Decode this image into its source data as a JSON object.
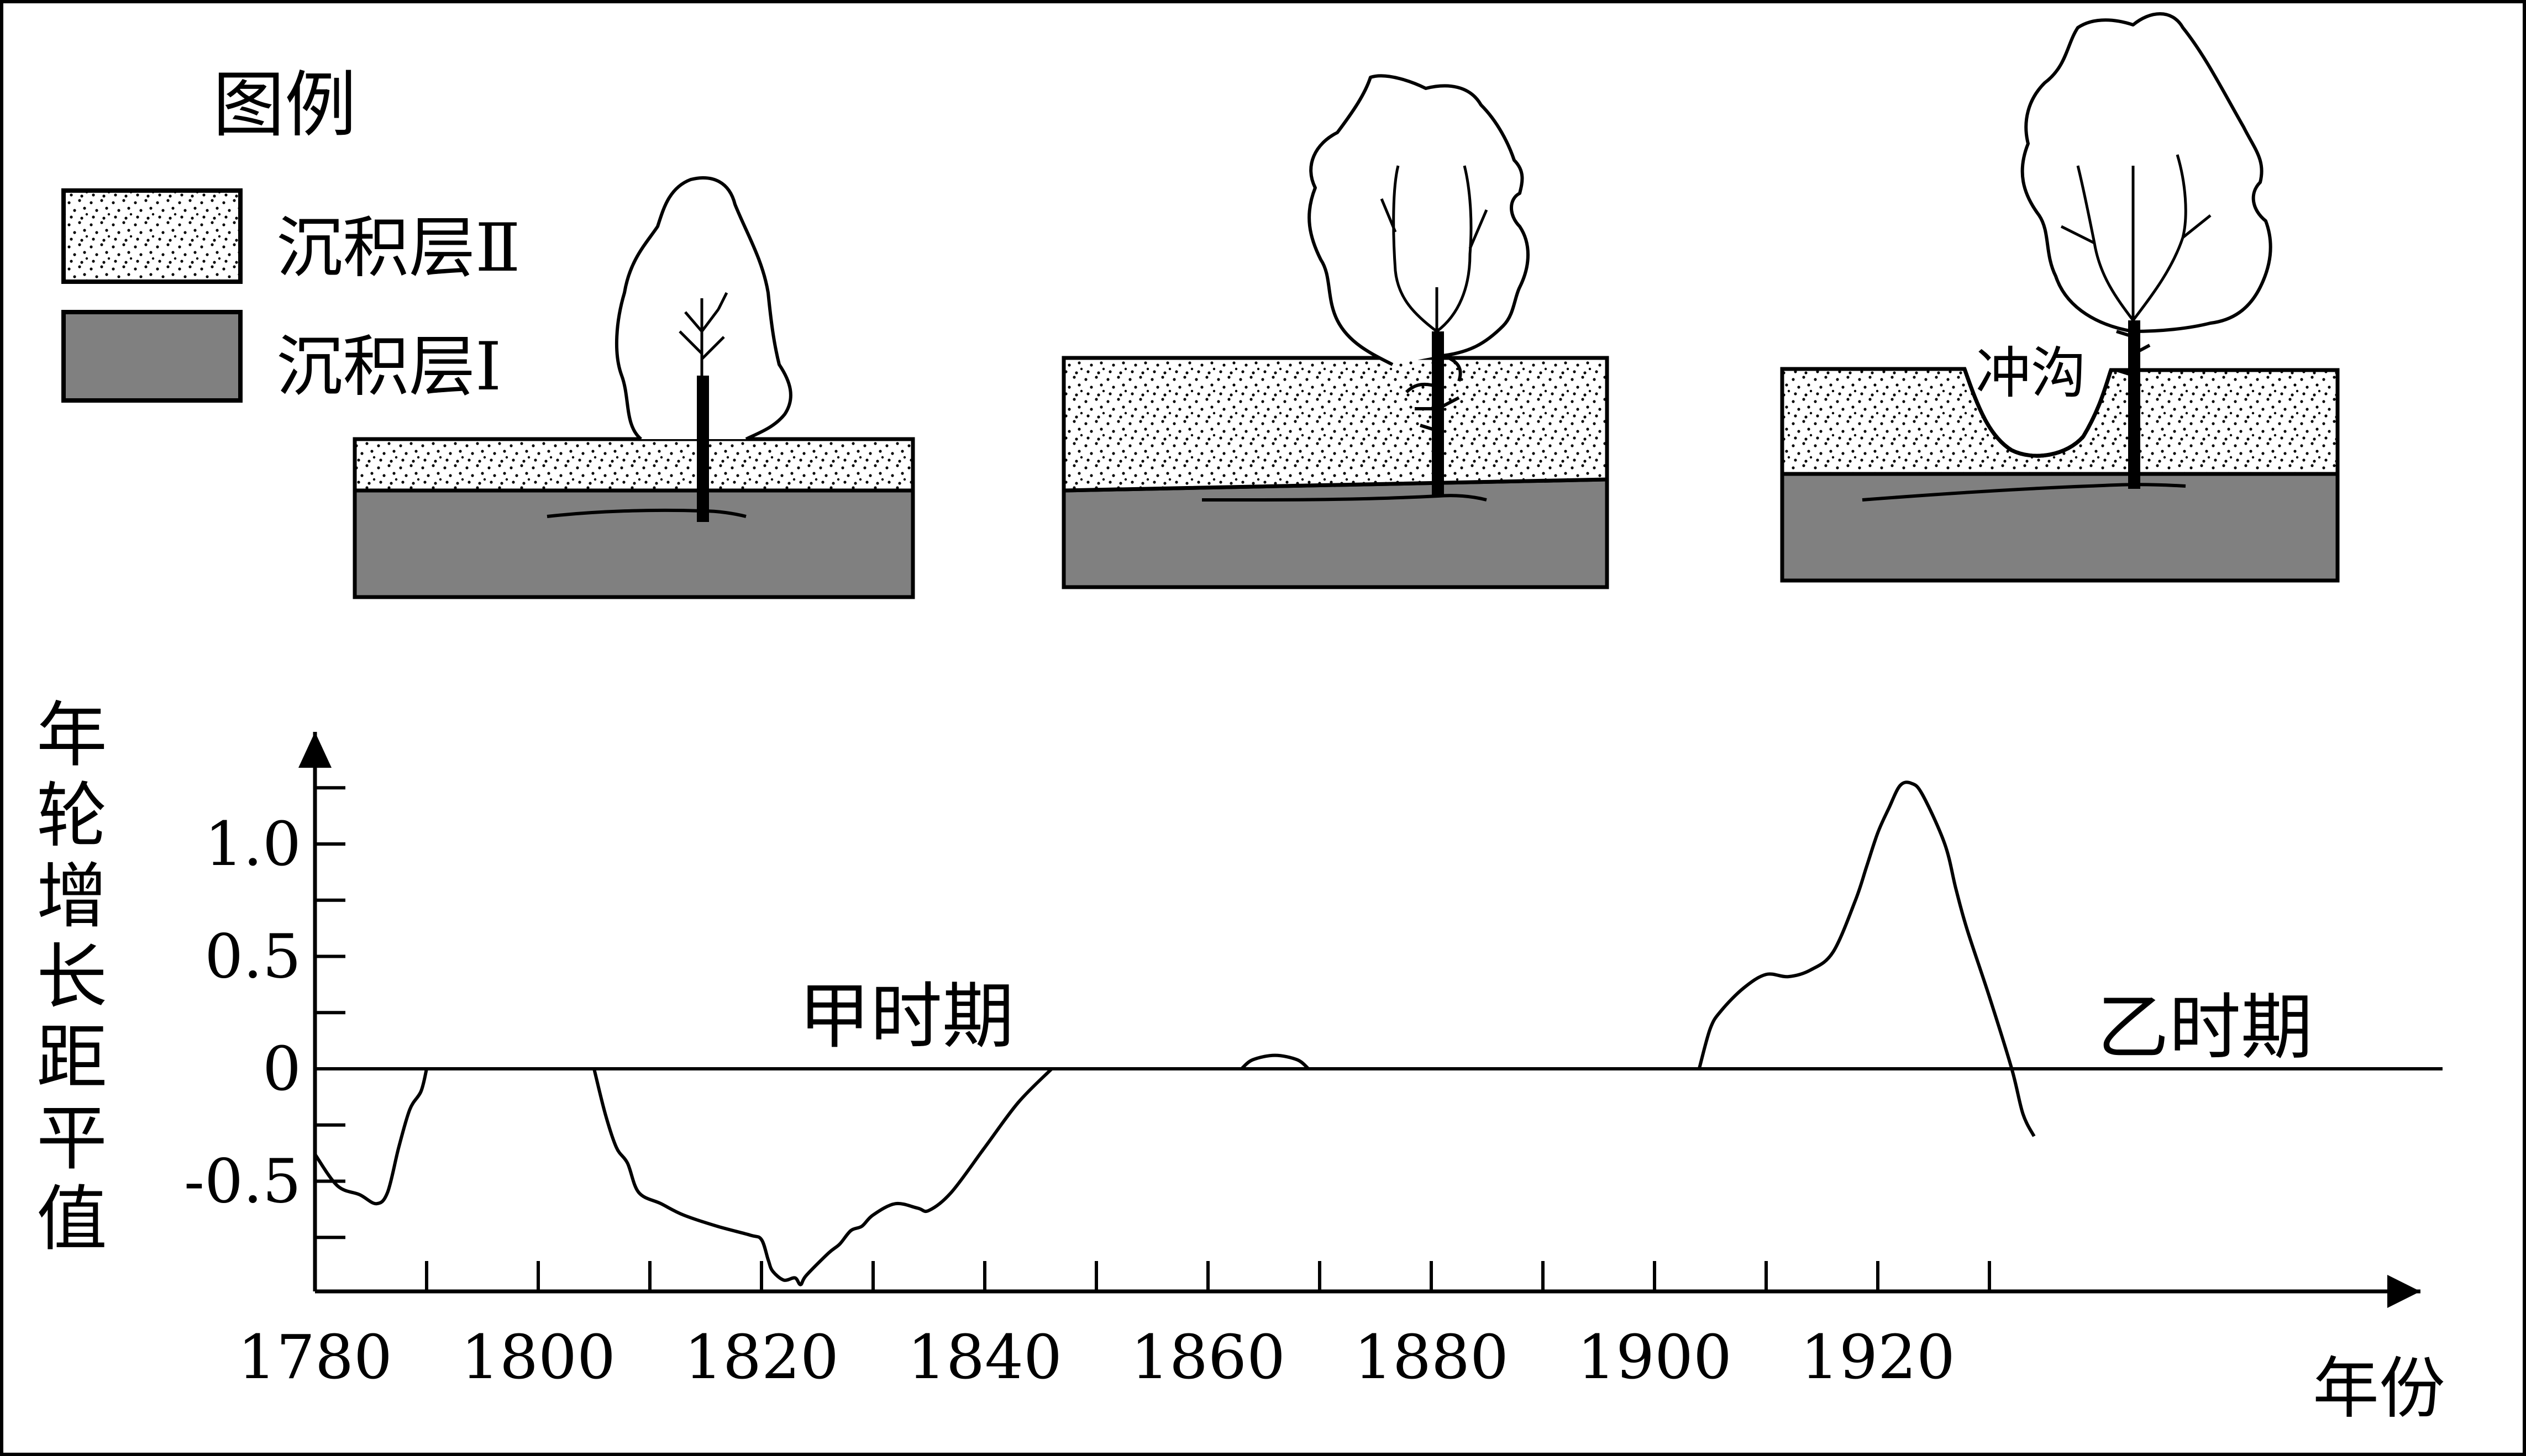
{
  "legend": {
    "title": "图例",
    "items": [
      {
        "label": "沉积层Ⅱ",
        "pattern": "dotted"
      },
      {
        "label": "沉积层Ⅰ",
        "color": "#808080"
      }
    ]
  },
  "scene_labels": {
    "gully": "冲沟"
  },
  "colors": {
    "layer1": "#808080",
    "layer2_bg": "#ffffff",
    "stroke": "#000000"
  },
  "chart_data": {
    "type": "line",
    "ylabel": "年轮增长距平值",
    "xlabel": "年份",
    "x_ticks": [
      1780,
      1800,
      1820,
      1840,
      1860,
      1880,
      1900,
      1920
    ],
    "y_ticks": [
      "1.0",
      "0.5",
      "0",
      "-0.5"
    ],
    "xlim": [
      1780,
      1935
    ],
    "ylim": [
      -1.0,
      1.3
    ],
    "annotations": [
      "甲时期",
      "乙时期"
    ],
    "series": [
      {
        "segments": [
          [
            [
              1780,
              -0.38
            ],
            [
              1782,
              -0.52
            ],
            [
              1784,
              -0.56
            ],
            [
              1785.5,
              -0.6
            ],
            [
              1786.5,
              -0.55
            ],
            [
              1787.5,
              -0.35
            ],
            [
              1788.5,
              -0.18
            ],
            [
              1789.5,
              -0.1
            ],
            [
              1790,
              0
            ]
          ],
          [
            [
              1805,
              0
            ],
            [
              1806,
              -0.2
            ],
            [
              1807,
              -0.35
            ],
            [
              1808,
              -0.42
            ],
            [
              1809,
              -0.55
            ],
            [
              1811,
              -0.6
            ],
            [
              1813,
              -0.65
            ],
            [
              1816,
              -0.7
            ],
            [
              1819,
              -0.74
            ],
            [
              1820,
              -0.76
            ],
            [
              1820.6,
              -0.85
            ],
            [
              1821,
              -0.9
            ],
            [
              1822,
              -0.94
            ],
            [
              1823,
              -0.93
            ],
            [
              1823.5,
              -0.96
            ],
            [
              1824,
              -0.92
            ],
            [
              1826,
              -0.82
            ],
            [
              1827,
              -0.78
            ],
            [
              1828,
              -0.72
            ],
            [
              1829,
              -0.7
            ],
            [
              1830,
              -0.65
            ],
            [
              1832,
              -0.6
            ],
            [
              1834,
              -0.62
            ],
            [
              1835,
              -0.63
            ],
            [
              1837,
              -0.55
            ],
            [
              1840,
              -0.35
            ],
            [
              1843,
              -0.15
            ],
            [
              1846,
              0
            ]
          ],
          [
            [
              1863,
              0
            ],
            [
              1864,
              0.04
            ],
            [
              1866,
              0.06
            ],
            [
              1868,
              0.04
            ],
            [
              1869,
              0
            ]
          ],
          [
            [
              1904,
              0
            ],
            [
              1905,
              0.18
            ],
            [
              1906,
              0.26
            ],
            [
              1908,
              0.36
            ],
            [
              1910,
              0.42
            ],
            [
              1912,
              0.41
            ],
            [
              1914,
              0.44
            ],
            [
              1916,
              0.52
            ],
            [
              1918,
              0.75
            ],
            [
              1919,
              0.9
            ],
            [
              1920,
              1.05
            ],
            [
              1921,
              1.16
            ],
            [
              1922,
              1.26
            ],
            [
              1923,
              1.27
            ],
            [
              1924,
              1.22
            ],
            [
              1926,
              1.0
            ],
            [
              1927,
              0.8
            ],
            [
              1928,
              0.62
            ],
            [
              1930,
              0.32
            ],
            [
              1932,
              0
            ],
            [
              1933,
              -0.2
            ],
            [
              1934,
              -0.3
            ]
          ]
        ]
      }
    ]
  }
}
